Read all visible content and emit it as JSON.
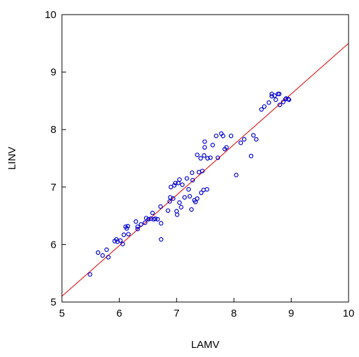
{
  "chart_data": {
    "type": "scatter",
    "title": "",
    "xlabel": "LAMV",
    "ylabel": "LINV",
    "xlim": [
      5,
      10
    ],
    "ylim": [
      5,
      10
    ],
    "xticks": [
      "5",
      "6",
      "7",
      "8",
      "9",
      "10"
    ],
    "yticks": [
      "5",
      "6",
      "7",
      "8",
      "9",
      "10"
    ],
    "grid": false,
    "legend": "none",
    "colors": {
      "points": "#0000cc",
      "fit_line": "#e00000",
      "frame": "#000000"
    },
    "fit_line": {
      "x": [
        5,
        10
      ],
      "y": [
        5.1,
        9.5
      ]
    },
    "points": [
      [
        5.49,
        5.48
      ],
      [
        5.63,
        5.86
      ],
      [
        5.71,
        5.81
      ],
      [
        5.78,
        5.91
      ],
      [
        5.81,
        5.78
      ],
      [
        5.92,
        6.06
      ],
      [
        5.95,
        6.09
      ],
      [
        5.97,
        6.05
      ],
      [
        6.02,
        6.07
      ],
      [
        6.06,
        6.01
      ],
      [
        6.08,
        6.17
      ],
      [
        6.11,
        6.31
      ],
      [
        6.13,
        6.28
      ],
      [
        6.16,
        6.18
      ],
      [
        6.15,
        6.32
      ],
      [
        6.29,
        6.4
      ],
      [
        6.32,
        6.27
      ],
      [
        6.32,
        6.31
      ],
      [
        6.38,
        6.35
      ],
      [
        6.45,
        6.38
      ],
      [
        6.47,
        6.46
      ],
      [
        6.51,
        6.44
      ],
      [
        6.55,
        6.45
      ],
      [
        6.58,
        6.55
      ],
      [
        6.6,
        6.44
      ],
      [
        6.63,
        6.45
      ],
      [
        6.67,
        6.44
      ],
      [
        6.72,
        6.66
      ],
      [
        6.73,
        6.37
      ],
      [
        6.73,
        6.09
      ],
      [
        6.85,
        6.59
      ],
      [
        6.88,
        6.75
      ],
      [
        6.89,
        6.82
      ],
      [
        6.9,
        7.0
      ],
      [
        6.94,
        6.8
      ],
      [
        6.96,
        7.03
      ],
      [
        6.98,
        7.07
      ],
      [
        7.0,
        6.58
      ],
      [
        7.01,
        6.52
      ],
      [
        7.03,
        7.07
      ],
      [
        7.05,
        6.73
      ],
      [
        7.05,
        7.13
      ],
      [
        7.08,
        6.65
      ],
      [
        7.1,
        7.04
      ],
      [
        7.14,
        6.82
      ],
      [
        7.18,
        7.15
      ],
      [
        7.21,
        6.96
      ],
      [
        7.23,
        6.84
      ],
      [
        7.26,
        6.61
      ],
      [
        7.28,
        7.12
      ],
      [
        7.27,
        7.25
      ],
      [
        7.31,
        6.77
      ],
      [
        7.33,
        6.74
      ],
      [
        7.36,
        7.56
      ],
      [
        7.36,
        6.8
      ],
      [
        7.39,
        7.26
      ],
      [
        7.42,
        7.5
      ],
      [
        7.43,
        6.9
      ],
      [
        7.45,
        7.28
      ],
      [
        7.47,
        6.95
      ],
      [
        7.48,
        7.55
      ],
      [
        7.49,
        7.69
      ],
      [
        7.49,
        7.79
      ],
      [
        7.53,
        6.96
      ],
      [
        7.54,
        7.5
      ],
      [
        7.59,
        7.51
      ],
      [
        7.63,
        7.73
      ],
      [
        7.69,
        7.89
      ],
      [
        7.72,
        7.51
      ],
      [
        7.78,
        7.93
      ],
      [
        7.81,
        7.89
      ],
      [
        7.84,
        7.66
      ],
      [
        7.87,
        7.69
      ],
      [
        7.95,
        7.89
      ],
      [
        8.04,
        7.21
      ],
      [
        8.12,
        7.77
      ],
      [
        8.18,
        7.83
      ],
      [
        8.3,
        7.54
      ],
      [
        8.34,
        7.9
      ],
      [
        8.39,
        7.83
      ],
      [
        8.48,
        8.35
      ],
      [
        8.53,
        8.4
      ],
      [
        8.61,
        8.47
      ],
      [
        8.66,
        8.58
      ],
      [
        8.66,
        8.62
      ],
      [
        8.71,
        8.59
      ],
      [
        8.73,
        8.52
      ],
      [
        8.77,
        8.62
      ],
      [
        8.79,
        8.62
      ],
      [
        8.8,
        8.43
      ],
      [
        8.86,
        8.48
      ],
      [
        8.9,
        8.53
      ],
      [
        8.91,
        8.54
      ],
      [
        8.95,
        8.53
      ],
      [
        8.96,
        8.52
      ]
    ]
  }
}
